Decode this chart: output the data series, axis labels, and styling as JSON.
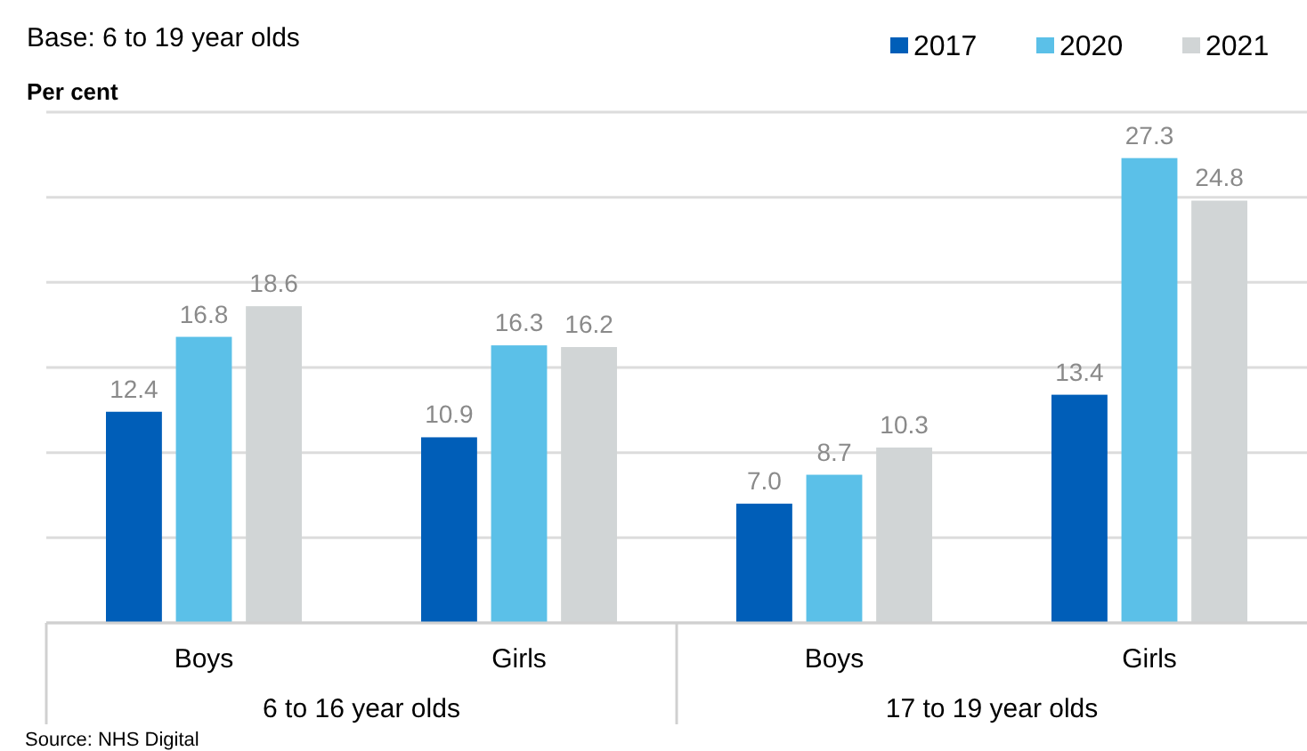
{
  "chart_data": {
    "type": "bar",
    "title": "Base: 6 to 19 year olds",
    "ylabel": "Per cent",
    "categories": [
      "Boys",
      "Girls",
      "Boys",
      "Girls"
    ],
    "series": [
      {
        "name": "2017",
        "color": "#005eb8",
        "values": [
          12.4,
          10.9,
          7.0,
          13.4
        ],
        "value_labels": [
          "12.4",
          "10.9",
          "7.0",
          "13.4"
        ]
      },
      {
        "name": "2020",
        "color": "#5bc0e8",
        "values": [
          16.8,
          16.3,
          8.7,
          27.3
        ],
        "value_labels": [
          "16.8",
          "16.3",
          "8.7",
          "27.3"
        ]
      },
      {
        "name": "2021",
        "color": "#d1d5d6",
        "values": [
          18.6,
          16.2,
          10.3,
          24.8
        ],
        "value_labels": [
          "18.6",
          "16.2",
          "10.3",
          "24.8"
        ]
      }
    ],
    "ylim": [
      0,
      30
    ],
    "yticks": [
      {
        "value": 0,
        "label": null
      },
      {
        "value": 5,
        "label": null
      },
      {
        "value": 10,
        "label": null
      },
      {
        "value": 15,
        "label": null
      },
      {
        "value": 20,
        "label": null
      },
      {
        "value": 25,
        "label": null
      },
      {
        "value": 30,
        "label": null
      }
    ],
    "grid": "y",
    "legend": "top right",
    "tick_labels": "x",
    "annotations": [
      "6 to 16 year olds",
      "17 to 19 year olds",
      "Source: NHS Digital"
    ]
  }
}
